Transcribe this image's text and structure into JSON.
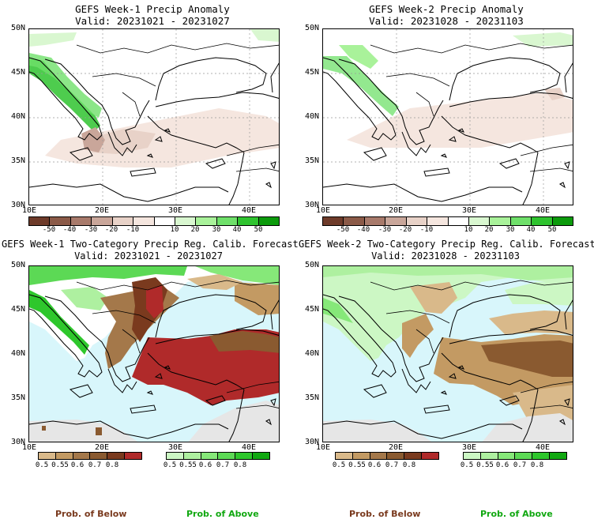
{
  "panels": [
    {
      "title": "GEFS Week-1 Precip Anomaly",
      "subtitle": "Valid: 20231021 - 20231027"
    },
    {
      "title": "GEFS Week-2 Precip Anomaly",
      "subtitle": "Valid: 20231028 - 20231103"
    },
    {
      "title": "GEFS Week-1 Two-Category Precip Reg. Calib. Forecast",
      "subtitle": "Valid: 20231021 - 20231027"
    },
    {
      "title": "GEFS Week-2 Two-Category Precip Reg. Calib. Forecast",
      "subtitle": "Valid: 20231028 - 20231103"
    }
  ],
  "lat_labels": [
    "50N",
    "45N",
    "40N",
    "35N",
    "30N"
  ],
  "lon_labels": [
    "10E",
    "20E",
    "30E",
    "40E"
  ],
  "anomaly_colorbar": {
    "ticks": [
      "-50",
      "-40",
      "-30",
      "-20",
      "-10",
      "10",
      "20",
      "30",
      "40",
      "50"
    ],
    "colors": [
      "#6e3b2a",
      "#8b5a48",
      "#a87a6b",
      "#c9a69a",
      "#e8d2c8",
      "#f5e6df",
      "#ffffff",
      "#d9f7d0",
      "#a9f29a",
      "#6fe06a",
      "#2fc32f",
      "#0c9b0c"
    ]
  },
  "prob_below": {
    "ticks": [
      "0.5",
      "0.55",
      "0.6",
      "0.7",
      "0.8"
    ],
    "colors": [
      "#d9b98a",
      "#c39a63",
      "#a4784a",
      "#8a5a30",
      "#7a3a1e",
      "#b02a2a"
    ],
    "label": "Prob. of Below"
  },
  "prob_above": {
    "ticks": [
      "0.5",
      "0.55",
      "0.6",
      "0.7",
      "0.8"
    ],
    "colors": [
      "#ccf7c4",
      "#aef0a0",
      "#86e879",
      "#5cd955",
      "#2ec72c",
      "#11a811"
    ],
    "label": "Prob. of Above"
  },
  "colors": {
    "sea_light": "#d8f6fb",
    "no_data": "#e6e6e6"
  }
}
